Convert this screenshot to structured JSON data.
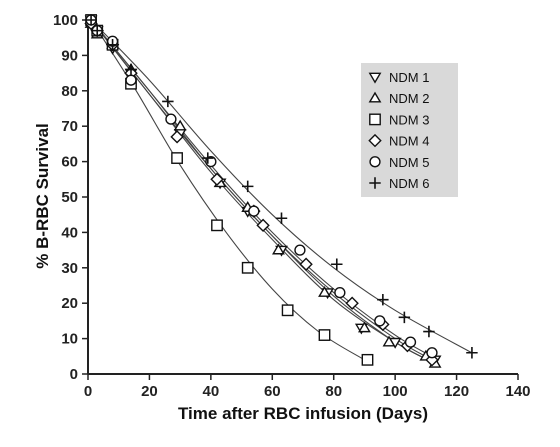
{
  "chart_data": {
    "type": "scatter",
    "xlabel": "Time after RBC infusion (Days)",
    "ylabel": "% B-RBC Survival",
    "xlim": [
      0,
      140
    ],
    "ylim": [
      0,
      100
    ],
    "xticks": [
      0,
      20,
      40,
      60,
      80,
      100,
      120,
      140
    ],
    "yticks": [
      0,
      10,
      20,
      30,
      40,
      50,
      60,
      70,
      80,
      90,
      100
    ],
    "grid": false,
    "legend_position": "top-right",
    "marker_color": "#111111",
    "legend_bg": "#d9d9d9",
    "series": [
      {
        "name": "NDM 1",
        "marker": "triangle-down",
        "x": [
          1,
          3,
          8,
          14,
          30,
          43,
          52,
          63,
          78,
          89,
          100,
          113
        ],
        "y": [
          100,
          97,
          92,
          85,
          68,
          54,
          46,
          35,
          23,
          13,
          9,
          4
        ],
        "curve": [
          [
            1,
            100
          ],
          [
            20,
            79
          ],
          [
            40,
            57
          ],
          [
            60,
            38
          ],
          [
            80,
            21
          ],
          [
            100,
            9
          ],
          [
            113,
            3
          ]
        ]
      },
      {
        "name": "NDM 2",
        "marker": "triangle-up",
        "x": [
          1,
          3,
          8,
          14,
          30,
          43,
          52,
          62,
          77,
          90,
          98,
          110,
          113
        ],
        "y": [
          99,
          96,
          93,
          86,
          70,
          54,
          47,
          35,
          23,
          13,
          9,
          5,
          3
        ],
        "curve": [
          [
            1,
            100
          ],
          [
            20,
            80
          ],
          [
            40,
            58
          ],
          [
            60,
            39
          ],
          [
            80,
            22
          ],
          [
            100,
            9
          ],
          [
            113,
            3
          ]
        ]
      },
      {
        "name": "NDM 3",
        "marker": "square",
        "x": [
          1,
          3,
          8,
          14,
          29,
          42,
          52,
          65,
          77,
          91
        ],
        "y": [
          100,
          97,
          93,
          82,
          61,
          42,
          30,
          18,
          11,
          4
        ],
        "curve": [
          [
            1,
            100
          ],
          [
            15,
            81
          ],
          [
            30,
            59
          ],
          [
            45,
            40
          ],
          [
            60,
            24
          ],
          [
            75,
            12
          ],
          [
            90,
            4
          ],
          [
            92,
            3
          ]
        ]
      },
      {
        "name": "NDM 4",
        "marker": "diamond",
        "x": [
          1,
          3,
          8,
          14,
          29,
          42,
          54,
          57,
          71,
          86,
          96,
          104,
          112
        ],
        "y": [
          99,
          97,
          93,
          85,
          67,
          55,
          46,
          42,
          31,
          20,
          14,
          8,
          4
        ],
        "curve": [
          [
            1,
            100
          ],
          [
            20,
            79
          ],
          [
            40,
            58
          ],
          [
            60,
            39
          ],
          [
            80,
            23
          ],
          [
            100,
            10
          ],
          [
            112,
            4
          ]
        ]
      },
      {
        "name": "NDM 5",
        "marker": "circle",
        "x": [
          1,
          3,
          8,
          14,
          27,
          40,
          54,
          69,
          82,
          95,
          105,
          112
        ],
        "y": [
          100,
          97,
          94,
          83,
          72,
          60,
          46,
          35,
          23,
          15,
          9,
          6
        ],
        "curve": [
          [
            1,
            100
          ],
          [
            20,
            80
          ],
          [
            40,
            59
          ],
          [
            60,
            40
          ],
          [
            80,
            24
          ],
          [
            100,
            11
          ],
          [
            114,
            4
          ]
        ]
      },
      {
        "name": "NDM 6",
        "marker": "plus",
        "x": [
          1,
          3,
          8,
          14,
          26,
          39,
          52,
          63,
          81,
          96,
          103,
          111,
          125
        ],
        "y": [
          100,
          97,
          93,
          86,
          77,
          61,
          53,
          44,
          31,
          21,
          16,
          12,
          6
        ],
        "curve": [
          [
            1,
            100
          ],
          [
            20,
            83
          ],
          [
            40,
            63
          ],
          [
            60,
            45
          ],
          [
            80,
            30
          ],
          [
            100,
            18
          ],
          [
            125,
            6
          ]
        ]
      }
    ]
  }
}
